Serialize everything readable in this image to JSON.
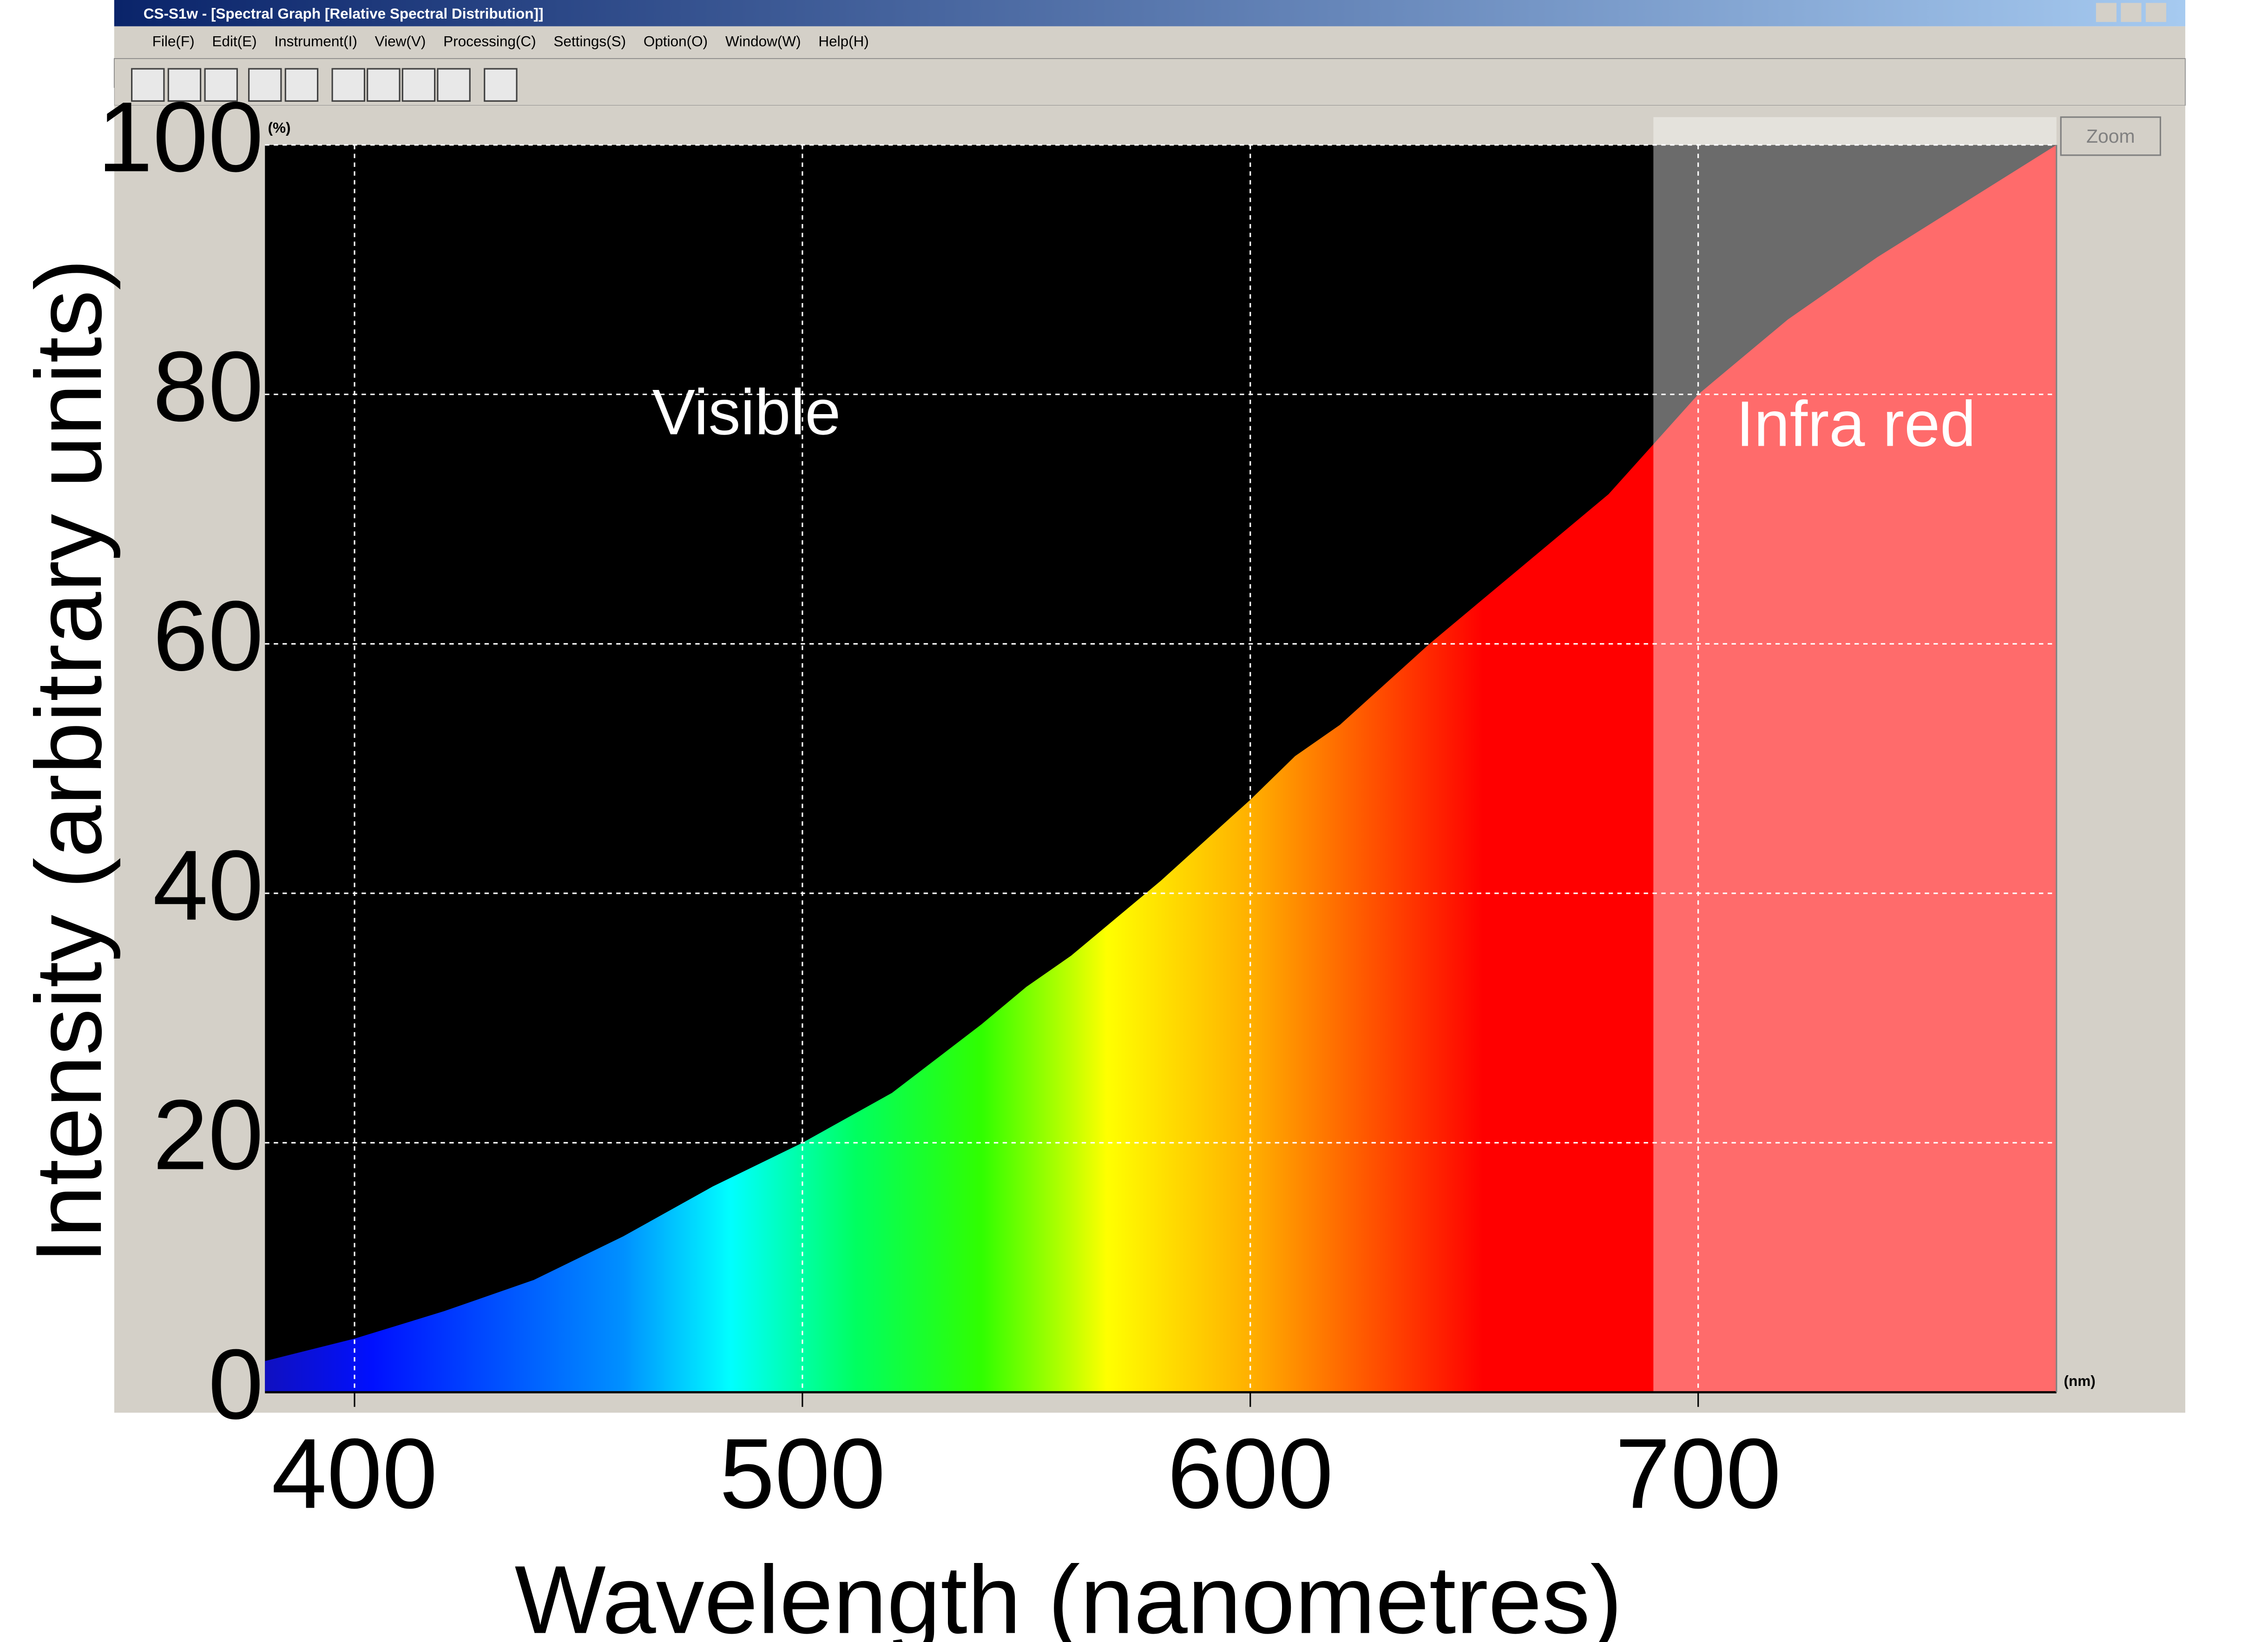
{
  "window": {
    "title": "CS-S1w - [Spectral Graph [Relative Spectral Distribution]]",
    "menu": [
      "File(F)",
      "Edit(E)",
      "Instrument(I)",
      "View(V)",
      "Processing(C)",
      "Settings(S)",
      "Option(O)",
      "Window(W)",
      "Help(H)"
    ],
    "zoom_button": "Zoom",
    "y_unit": "(%)",
    "x_unit": "(nm)"
  },
  "chart_data": {
    "type": "area",
    "x_label": "Wavelength (nanometres)",
    "y_label": "Intensity (arbitrary units)",
    "x": [
      380,
      400,
      420,
      440,
      460,
      480,
      500,
      520,
      540,
      550,
      560,
      580,
      600,
      610,
      620,
      640,
      660,
      680,
      700,
      720,
      740,
      760,
      780
    ],
    "values": [
      2.5,
      4.3,
      6.5,
      9,
      12.5,
      16.5,
      20,
      24,
      29.5,
      32.5,
      35,
      41,
      47.5,
      51,
      53.5,
      60,
      66,
      72,
      80,
      86,
      91,
      95.5,
      100
    ],
    "xlim": [
      380,
      780
    ],
    "ylim": [
      0,
      100
    ],
    "xticks": [
      400,
      500,
      600,
      700
    ],
    "yticks": [
      0,
      20,
      40,
      60,
      80,
      100
    ],
    "grid": true,
    "regions": [
      {
        "name": "Visible",
        "from": 380,
        "to": 690
      },
      {
        "name": "Infra red",
        "from": 690,
        "to": 780
      }
    ]
  }
}
